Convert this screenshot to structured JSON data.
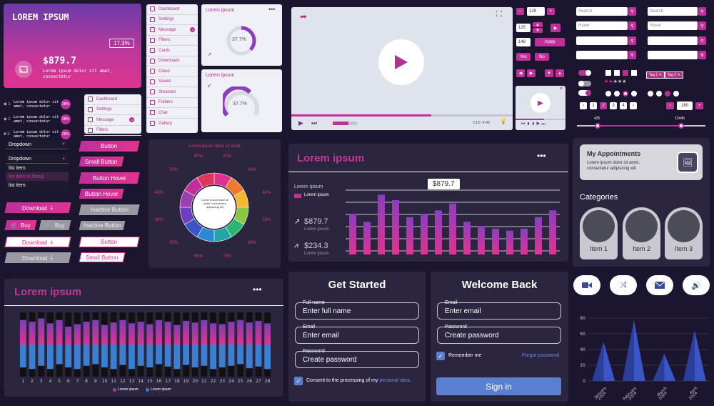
{
  "hero": {
    "title": "LOREM IPSUM",
    "badge": "17.3%",
    "amount": "$879.7",
    "desc": "Lorem ipsum dolor sit amet, consectetur"
  },
  "steps": [
    {
      "num": "1",
      "text": "Lorem ipsum dolor sit amet, consectetur",
      "pct": "28%"
    },
    {
      "num": "2",
      "text": "Lorem ipsum dolor sit amet, consectetur",
      "pct": "28%"
    },
    {
      "num": "3",
      "text": "Lorem ipsum dolor sit amet, consectetur",
      "pct": "28%"
    }
  ],
  "menu_large": [
    "Dashboard",
    "Settings",
    "Message",
    "Filters",
    "Cards",
    "Downloads",
    "Cloud",
    "Saved",
    "Structure",
    "Folders",
    "Chat",
    "Gallery"
  ],
  "menu_small": [
    "Dashboard",
    "Settings",
    "Message",
    "Filters"
  ],
  "message_badge": "3",
  "gauge_cards": [
    {
      "title": "Lorem ipsum",
      "value": "37.7%"
    },
    {
      "title": "Lorem ipsum",
      "value": "37.7%"
    }
  ],
  "dropdown": {
    "label": "Dropdown",
    "open_label": "Dropdown",
    "items": [
      "list item",
      "list item in focus",
      "list item"
    ]
  },
  "buttons": {
    "button": "Button",
    "small_button": "Small Button",
    "button_hover": "Button Hover",
    "inactive_button": "Inactive Button",
    "download": "Download",
    "buy": "Buy"
  },
  "wheel": {
    "title": "Lorem ipsum dolor sit amet",
    "center_text": "Lorem ipsum dolor sit amet, consectetur adipiscing elit",
    "labels": [
      "20%",
      "90%",
      "60%",
      "35%",
      "43%",
      "70%",
      "95%",
      "20%",
      "10%",
      "45%",
      "75%",
      "90%"
    ]
  },
  "video": {
    "time": "3:18 / 4:48"
  },
  "steppers": {
    "v1": "125",
    "v2": "125",
    "v3": "148",
    "apply": "Apply",
    "yes": "Yes",
    "no": "No"
  },
  "search": {
    "placeholder": "Search",
    "hover": "Hover"
  },
  "tags": {
    "tag1": "Tag 1",
    "tag2": "Tag 2"
  },
  "pagination": [
    "1",
    "2",
    "3",
    "4"
  ],
  "stepper2": "160",
  "range": {
    "min_label": "425",
    "max_label": "12445"
  },
  "bar_card": {
    "title": "Lorem ipsum",
    "subtitle": "Lorem ipsum",
    "legend": "Lorem ipsum",
    "tooltip": "$879.7",
    "stat1": "$879.7",
    "stat1_sub": "Lorem ipsum",
    "stat2": "$234.3",
    "stat2_sub": "Lorem ipsum"
  },
  "chart_data": [
    {
      "type": "bar",
      "values": [
        60,
        48,
        88,
        80,
        55,
        60,
        65,
        75,
        48,
        42,
        38,
        35,
        38,
        55,
        65
      ]
    },
    {
      "type": "bar",
      "categories": [
        "1",
        "2",
        "3",
        "4",
        "5",
        "6",
        "7",
        "8",
        "9",
        "10",
        "11",
        "12",
        "13",
        "14",
        "15",
        "16",
        "17",
        "18",
        "19",
        "20",
        "21",
        "22",
        "23",
        "24",
        "25",
        "26",
        "27",
        "28"
      ],
      "series": [
        {
          "name": "Lorem ipsum",
          "color": "#c0309a",
          "values": [
            30,
            28,
            32,
            26,
            30,
            22,
            25,
            28,
            30,
            24,
            27,
            30,
            26,
            28,
            25,
            30,
            28,
            24,
            29,
            27,
            30,
            26,
            25,
            28,
            30,
            27,
            29,
            26
          ]
        },
        {
          "name": "Lorem ipsum",
          "color": "#3a7fd0",
          "values": [
            28,
            30,
            26,
            30,
            24,
            28,
            30,
            26,
            24,
            28,
            30,
            25,
            30,
            26,
            28,
            24,
            27,
            30,
            25,
            28,
            26,
            30,
            28,
            26,
            24,
            29,
            27,
            30
          ]
        }
      ]
    },
    {
      "type": "bar",
      "categories": [
        "January\n2024",
        "February\n2024",
        "March\n2024",
        "April\n2024"
      ],
      "values": [
        50,
        78,
        35,
        65
      ],
      "yticks": [
        "0",
        "20",
        "40",
        "60",
        "80"
      ],
      "ylim": [
        0,
        80
      ]
    }
  ],
  "appointments": {
    "title": "My Appointments",
    "text": "Lorem ipsum dolor sit amet, consectetur adipiscing elit"
  },
  "categories": {
    "title": "Categories",
    "items": [
      "Item 1",
      "Item 2",
      "Item 3"
    ]
  },
  "bottom_bar": {
    "title": "Lorem ipsum",
    "legend1": "Lorem ipsum",
    "legend2": "Lorem ipsum"
  },
  "get_started": {
    "title": "Get Started",
    "fields": [
      {
        "label": "Full name",
        "placeholder": "Enter full name"
      },
      {
        "label": "Email",
        "placeholder": "Enter email"
      },
      {
        "label": "Password",
        "placeholder": "Create password"
      }
    ],
    "consent_prefix": "Consent to the processing of my ",
    "consent_link": "personal data",
    "consent_suffix": "."
  },
  "welcome": {
    "title": "Welcome Back",
    "fields": [
      {
        "label": "Email",
        "placeholder": "Enter email"
      },
      {
        "label": "Password",
        "placeholder": "Create password"
      }
    ],
    "remember": "Remember me",
    "forgot": "Forgot password",
    "signin": "Sign in"
  }
}
